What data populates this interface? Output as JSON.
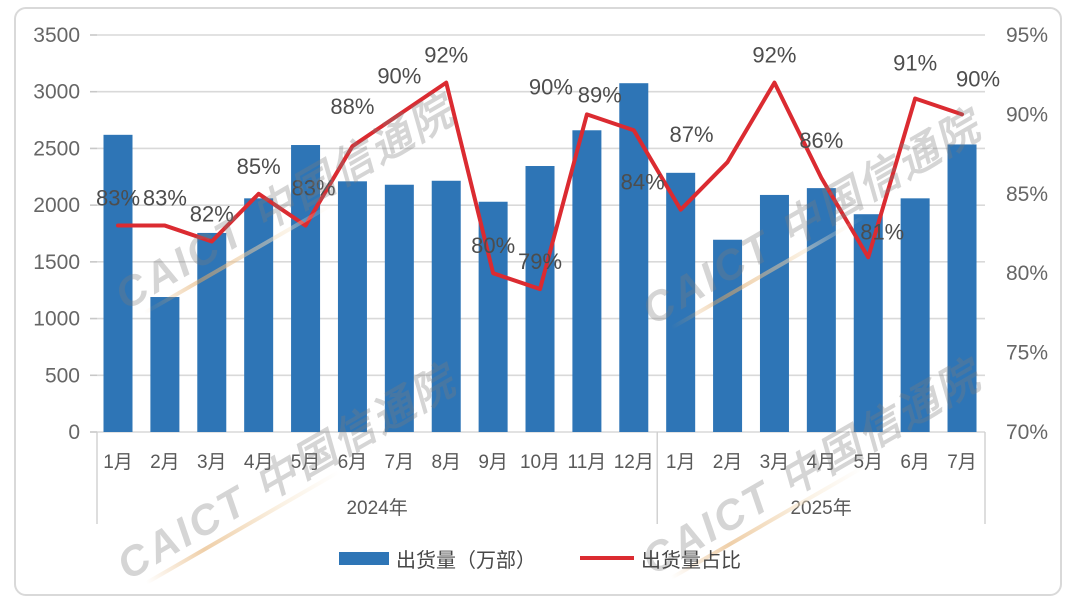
{
  "watermark": {
    "text": "CAICT 中国信通院"
  },
  "legend": {
    "bar_label": "出货量（万部）",
    "line_label": "出货量占比"
  },
  "chart_data": {
    "type": "combo-bar-line",
    "categories": [
      "1月",
      "2月",
      "3月",
      "4月",
      "5月",
      "6月",
      "7月",
      "8月",
      "9月",
      "10月",
      "11月",
      "12月",
      "1月",
      "2月",
      "3月",
      "4月",
      "5月",
      "6月",
      "7月"
    ],
    "year_groups": [
      {
        "label": "2024年",
        "months": 12
      },
      {
        "label": "2025年",
        "months": 7
      }
    ],
    "series": [
      {
        "name": "出货量（万部）",
        "type": "bar",
        "axis": "left",
        "color": "#2E75B6",
        "values": [
          2620,
          1190,
          1755,
          2060,
          2530,
          2210,
          2180,
          2215,
          2030,
          2345,
          2660,
          3075,
          2285,
          1695,
          2090,
          2150,
          1920,
          2060,
          2535
        ]
      },
      {
        "name": "出货量占比",
        "type": "line",
        "axis": "right",
        "color": "#DB2B31",
        "values": [
          83,
          83,
          82,
          85,
          83,
          88,
          90,
          92,
          80,
          79,
          90,
          89,
          84,
          87,
          92,
          86,
          81,
          91,
          90
        ],
        "labels": [
          "83%",
          "83%",
          "82%",
          "85%",
          "83%",
          "88%",
          "90%",
          "92%",
          "80%",
          "79%",
          "90%",
          "89%",
          "84%",
          "87%",
          "92%",
          "86%",
          "81%",
          "91%",
          "90%"
        ]
      }
    ],
    "left_axis": {
      "min": 0,
      "max": 3500,
      "step": 500,
      "tick_labels": [
        "0",
        "500",
        "1000",
        "1500",
        "2000",
        "2500",
        "3000",
        "3500"
      ]
    },
    "right_axis": {
      "min": 70,
      "max": 95,
      "step": 5,
      "tick_labels": [
        "70%",
        "75%",
        "80%",
        "85%",
        "90%",
        "95%"
      ]
    },
    "grid": true,
    "legend_position": "bottom",
    "label_offsets": {
      "4": [
        8,
        -10
      ],
      "5": [
        0,
        -12
      ],
      "6": [
        0,
        -11
      ],
      "10": [
        -36,
        0
      ],
      "11": [
        -34,
        -8
      ],
      "12": [
        -38,
        0
      ],
      "13": [
        -36,
        0
      ],
      "15": [
        0,
        -10
      ],
      "16": [
        14,
        2
      ],
      "17": [
        0,
        -8
      ],
      "18": [
        16,
        -8
      ]
    },
    "style": {
      "grid_color": "#D9D9D9",
      "tick_color": "#C8C8C8",
      "divider_color": "#CFCFCF",
      "axis_text_color": "#666666",
      "month_text_color": "#595959",
      "point_label_color": "#4D4D4D",
      "watermark_color": "rgba(125,125,125,0.32)",
      "card_border_color": "#D9D9D9"
    }
  }
}
